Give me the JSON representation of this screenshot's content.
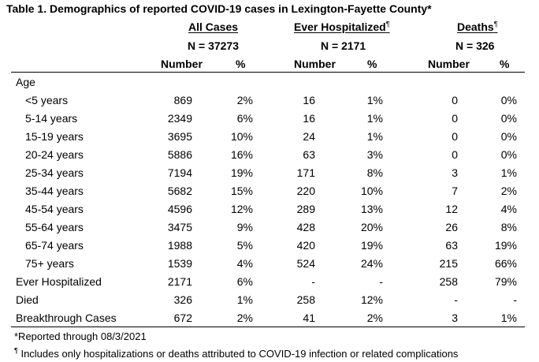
{
  "title": "Table 1. Demographics of reported COVID-19 cases in Lexington-Fayette County*",
  "groups": [
    {
      "label": "All Cases",
      "sup": "",
      "n": "N = 37273"
    },
    {
      "label": "Ever Hospitalized",
      "sup": "¶",
      "n": "N = 2171"
    },
    {
      "label": "Deaths",
      "sup": "¶",
      "n": "N = 326"
    }
  ],
  "subheaders": [
    "Number",
    "%",
    "Number",
    "%",
    "Number",
    "%"
  ],
  "section_label": "Age",
  "rows": [
    {
      "label": "<5 years",
      "indent": true,
      "cells": [
        "869",
        "2%",
        "16",
        "1%",
        "0",
        "0%"
      ]
    },
    {
      "label": "5-14 years",
      "indent": true,
      "cells": [
        "2349",
        "6%",
        "16",
        "1%",
        "0",
        "0%"
      ]
    },
    {
      "label": "15-19 years",
      "indent": true,
      "cells": [
        "3695",
        "10%",
        "24",
        "1%",
        "0",
        "0%"
      ]
    },
    {
      "label": "20-24 years",
      "indent": true,
      "cells": [
        "5886",
        "16%",
        "63",
        "3%",
        "0",
        "0%"
      ]
    },
    {
      "label": "25-34 years",
      "indent": true,
      "cells": [
        "7194",
        "19%",
        "171",
        "8%",
        "3",
        "1%"
      ]
    },
    {
      "label": "35-44 years",
      "indent": true,
      "cells": [
        "5682",
        "15%",
        "220",
        "10%",
        "7",
        "2%"
      ]
    },
    {
      "label": "45-54 years",
      "indent": true,
      "cells": [
        "4596",
        "12%",
        "289",
        "13%",
        "12",
        "4%"
      ]
    },
    {
      "label": "55-64 years",
      "indent": true,
      "cells": [
        "3475",
        "9%",
        "428",
        "20%",
        "26",
        "8%"
      ]
    },
    {
      "label": "65-74 years",
      "indent": true,
      "cells": [
        "1988",
        "5%",
        "420",
        "19%",
        "63",
        "19%"
      ]
    },
    {
      "label": "75+ years",
      "indent": true,
      "cells": [
        "1539",
        "4%",
        "524",
        "24%",
        "215",
        "66%"
      ]
    },
    {
      "label": "Ever Hospitalized",
      "indent": false,
      "cells": [
        "2171",
        "6%",
        "-",
        "-",
        "258",
        "79%"
      ]
    },
    {
      "label": "Died",
      "indent": false,
      "cells": [
        "326",
        "1%",
        "258",
        "12%",
        "-",
        "-"
      ]
    },
    {
      "label": "Breakthrough Cases",
      "indent": false,
      "cells": [
        "672",
        "2%",
        "41",
        "2%",
        "3",
        "1%"
      ]
    }
  ],
  "footnotes": [
    {
      "mark": "",
      "text": "*Reported through 08/3/2021"
    },
    {
      "mark": "¶",
      "text": " Includes only hospitalizations or deaths attributed to COVID-19 infection or related complications"
    }
  ]
}
